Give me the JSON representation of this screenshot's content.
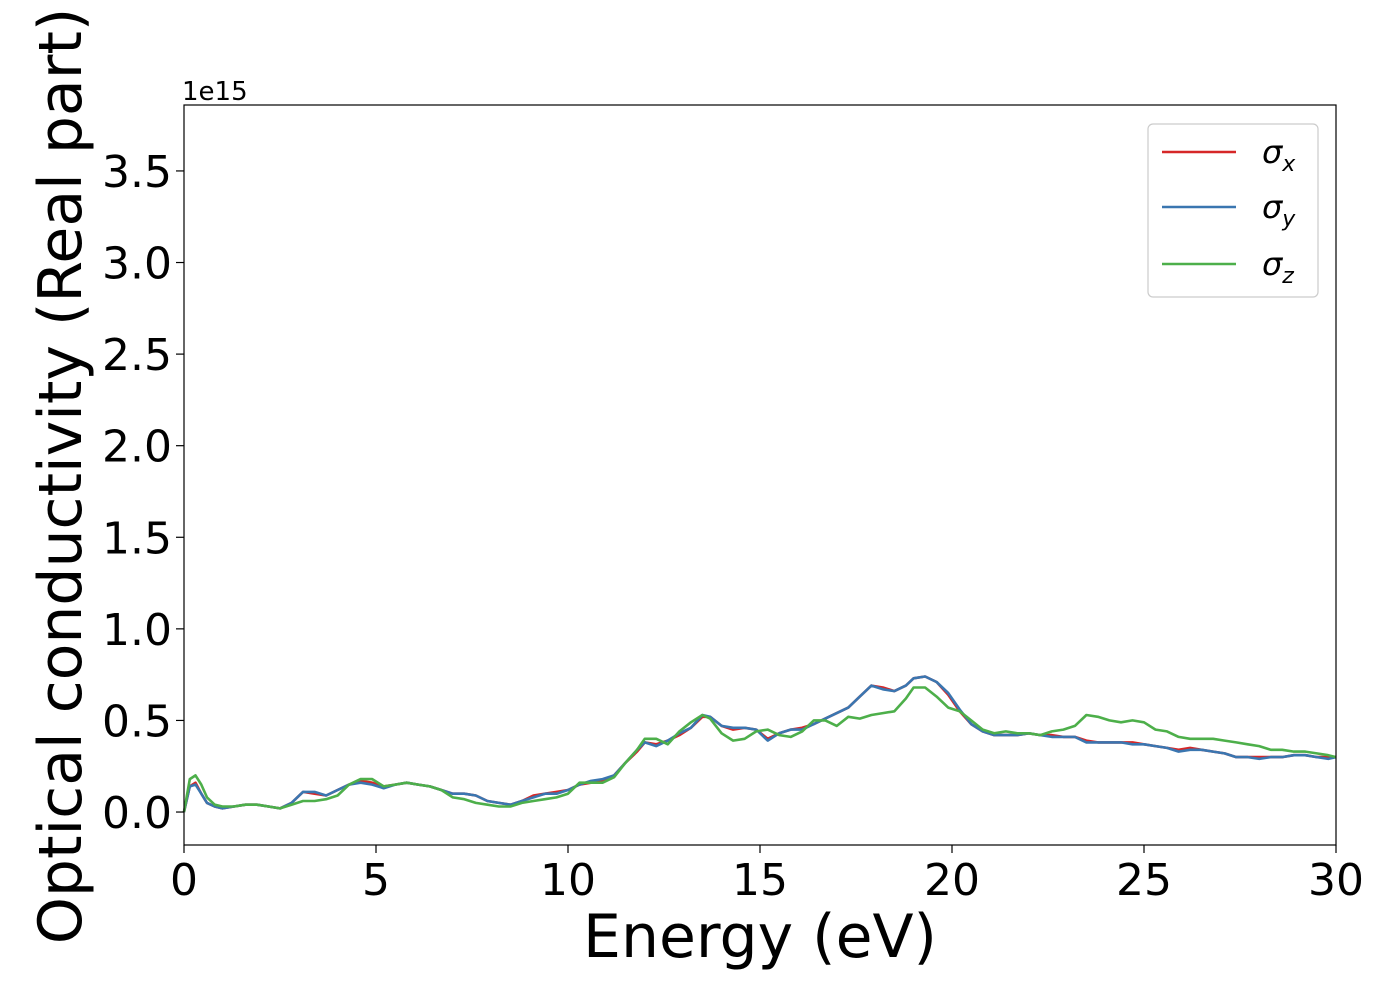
{
  "chart_data": {
    "type": "line",
    "title": "",
    "xlabel": "Energy (eV)",
    "ylabel": "Optical conductivity (Real part)",
    "y_offset_label": "1e15",
    "xlim": [
      0,
      30
    ],
    "ylim": [
      -0.18,
      3.86
    ],
    "y_multiplier": 1000000000000000.0,
    "xticks": [
      0,
      5,
      10,
      15,
      20,
      25,
      30
    ],
    "xtick_labels": [
      "0",
      "5",
      "10",
      "15",
      "20",
      "25",
      "30"
    ],
    "yticks": [
      0.0,
      0.5,
      1.0,
      1.5,
      2.0,
      2.5,
      3.0,
      3.5
    ],
    "ytick_labels": [
      "0.0",
      "0.5",
      "1.0",
      "1.5",
      "2.0",
      "2.5",
      "3.0",
      "3.5"
    ],
    "grid": false,
    "legend_position": "top-right",
    "x": [
      0,
      0.15,
      0.3,
      0.45,
      0.6,
      0.8,
      1.0,
      1.3,
      1.6,
      1.9,
      2.2,
      2.5,
      2.8,
      3.1,
      3.4,
      3.7,
      4.0,
      4.3,
      4.6,
      4.9,
      5.2,
      5.5,
      5.8,
      6.1,
      6.4,
      6.7,
      7.0,
      7.3,
      7.6,
      7.9,
      8.2,
      8.5,
      8.8,
      9.1,
      9.4,
      9.7,
      10.0,
      10.3,
      10.6,
      10.9,
      11.2,
      11.5,
      11.8,
      12.0,
      12.3,
      12.6,
      12.9,
      13.2,
      13.5,
      13.7,
      14.0,
      14.3,
      14.6,
      14.9,
      15.2,
      15.5,
      15.8,
      16.1,
      16.4,
      16.7,
      17.0,
      17.3,
      17.6,
      17.9,
      18.2,
      18.5,
      18.8,
      19.0,
      19.3,
      19.6,
      19.9,
      20.2,
      20.5,
      20.8,
      21.1,
      21.4,
      21.7,
      22.0,
      22.3,
      22.6,
      22.9,
      23.2,
      23.5,
      23.8,
      24.1,
      24.4,
      24.7,
      25.0,
      25.3,
      25.6,
      25.9,
      26.2,
      26.5,
      26.8,
      27.1,
      27.4,
      27.7,
      28.0,
      28.3,
      28.6,
      28.9,
      29.2,
      29.5,
      29.8,
      30.0
    ],
    "series": [
      {
        "name": "σx",
        "color": "#d62728",
        "values": [
          0.0,
          0.14,
          0.16,
          0.1,
          0.05,
          0.03,
          0.02,
          0.03,
          0.04,
          0.04,
          0.03,
          0.02,
          0.05,
          0.11,
          0.1,
          0.09,
          0.12,
          0.15,
          0.17,
          0.16,
          0.14,
          0.15,
          0.16,
          0.15,
          0.14,
          0.12,
          0.1,
          0.1,
          0.09,
          0.06,
          0.05,
          0.04,
          0.06,
          0.09,
          0.1,
          0.11,
          0.12,
          0.15,
          0.16,
          0.17,
          0.2,
          0.27,
          0.33,
          0.38,
          0.37,
          0.39,
          0.42,
          0.46,
          0.52,
          0.52,
          0.47,
          0.45,
          0.46,
          0.45,
          0.4,
          0.43,
          0.45,
          0.46,
          0.48,
          0.51,
          0.54,
          0.57,
          0.63,
          0.69,
          0.68,
          0.66,
          0.69,
          0.73,
          0.74,
          0.71,
          0.64,
          0.55,
          0.48,
          0.44,
          0.42,
          0.42,
          0.42,
          0.43,
          0.42,
          0.42,
          0.41,
          0.41,
          0.39,
          0.38,
          0.38,
          0.38,
          0.38,
          0.37,
          0.36,
          0.35,
          0.34,
          0.35,
          0.34,
          0.33,
          0.32,
          0.3,
          0.3,
          0.3,
          0.3,
          0.3,
          0.31,
          0.31,
          0.3,
          0.3,
          0.3
        ]
      },
      {
        "name": "σy",
        "color": "#3a76b0",
        "values": [
          0.0,
          0.14,
          0.15,
          0.1,
          0.05,
          0.03,
          0.02,
          0.03,
          0.04,
          0.04,
          0.03,
          0.02,
          0.05,
          0.11,
          0.11,
          0.09,
          0.12,
          0.15,
          0.16,
          0.15,
          0.13,
          0.15,
          0.16,
          0.15,
          0.14,
          0.12,
          0.1,
          0.1,
          0.09,
          0.06,
          0.05,
          0.04,
          0.06,
          0.08,
          0.1,
          0.1,
          0.12,
          0.15,
          0.17,
          0.18,
          0.2,
          0.27,
          0.34,
          0.38,
          0.36,
          0.39,
          0.43,
          0.46,
          0.53,
          0.52,
          0.47,
          0.46,
          0.46,
          0.45,
          0.39,
          0.43,
          0.45,
          0.45,
          0.48,
          0.51,
          0.54,
          0.57,
          0.63,
          0.69,
          0.67,
          0.66,
          0.69,
          0.73,
          0.74,
          0.71,
          0.65,
          0.56,
          0.48,
          0.44,
          0.42,
          0.42,
          0.42,
          0.43,
          0.42,
          0.41,
          0.41,
          0.41,
          0.38,
          0.38,
          0.38,
          0.38,
          0.37,
          0.37,
          0.36,
          0.35,
          0.33,
          0.34,
          0.34,
          0.33,
          0.32,
          0.3,
          0.3,
          0.29,
          0.3,
          0.3,
          0.31,
          0.31,
          0.3,
          0.29,
          0.3
        ]
      },
      {
        "name": "σz",
        "color": "#4daf4a",
        "values": [
          0.0,
          0.18,
          0.2,
          0.15,
          0.08,
          0.04,
          0.03,
          0.03,
          0.04,
          0.04,
          0.03,
          0.02,
          0.04,
          0.06,
          0.06,
          0.07,
          0.09,
          0.15,
          0.18,
          0.18,
          0.14,
          0.15,
          0.16,
          0.15,
          0.14,
          0.12,
          0.08,
          0.07,
          0.05,
          0.04,
          0.03,
          0.03,
          0.05,
          0.06,
          0.07,
          0.08,
          0.1,
          0.16,
          0.16,
          0.16,
          0.19,
          0.27,
          0.34,
          0.4,
          0.4,
          0.37,
          0.44,
          0.49,
          0.53,
          0.51,
          0.43,
          0.39,
          0.4,
          0.44,
          0.45,
          0.42,
          0.41,
          0.44,
          0.5,
          0.5,
          0.47,
          0.52,
          0.51,
          0.53,
          0.54,
          0.55,
          0.62,
          0.68,
          0.68,
          0.63,
          0.57,
          0.55,
          0.5,
          0.45,
          0.43,
          0.44,
          0.43,
          0.43,
          0.42,
          0.44,
          0.45,
          0.47,
          0.53,
          0.52,
          0.5,
          0.49,
          0.5,
          0.49,
          0.45,
          0.44,
          0.41,
          0.4,
          0.4,
          0.4,
          0.39,
          0.38,
          0.37,
          0.36,
          0.34,
          0.34,
          0.33,
          0.33,
          0.32,
          0.31,
          0.3
        ]
      }
    ]
  }
}
